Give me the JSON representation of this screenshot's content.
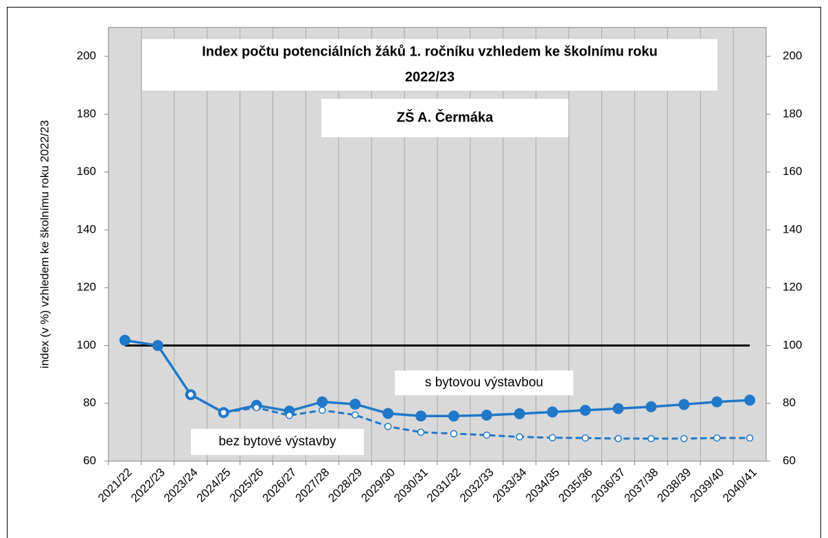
{
  "chart_data": {
    "type": "line",
    "title_lines": [
      "Index počtu potenciálních žáků 1. ročníku vzhledem ke školnímu roku",
      "2022/23"
    ],
    "subtitle": "ZŠ A. Čermáka",
    "y_label": "index (v %) vzhledem ke školnímu roku 2022/23",
    "categories": [
      "2021/22",
      "2022/23",
      "2023/24",
      "2024/25",
      "2025/26",
      "2026/27",
      "2027/28",
      "2028/29",
      "2029/30",
      "2030/31",
      "2031/32",
      "2032/33",
      "2033/34",
      "2034/35",
      "2035/36",
      "2036/37",
      "2037/38",
      "2038/39",
      "2039/40",
      "2040/41"
    ],
    "series": [
      {
        "name": "s bytovou výstavbou",
        "color": "#1f78c8",
        "style": "solid",
        "values": [
          101.8,
          100,
          83,
          76.8,
          79.3,
          77.3,
          80.5,
          79.7,
          76.5,
          75.6,
          75.6,
          75.9,
          76.4,
          77,
          77.6,
          78.2,
          78.8,
          79.6,
          80.5,
          81.1
        ]
      },
      {
        "name": "bez bytové výstavby",
        "color": "#1f78c8",
        "style": "dashed",
        "values": [
          null,
          null,
          83,
          76.8,
          78.5,
          75.8,
          77.6,
          76,
          72,
          70,
          69.5,
          69,
          68.4,
          68.1,
          68,
          67.8,
          67.8,
          67.8,
          68,
          68
        ]
      }
    ],
    "reference_value": 100,
    "reference_color": "#000000",
    "ylim": [
      60,
      210
    ],
    "yticks": [
      60,
      80,
      100,
      120,
      140,
      160,
      180,
      200
    ],
    "y2lim": [
      60,
      210
    ],
    "y2ticks": [
      60,
      80,
      100,
      120,
      140,
      160,
      180,
      200
    ],
    "grid": "x",
    "plot_background": "#d9d9d9"
  }
}
